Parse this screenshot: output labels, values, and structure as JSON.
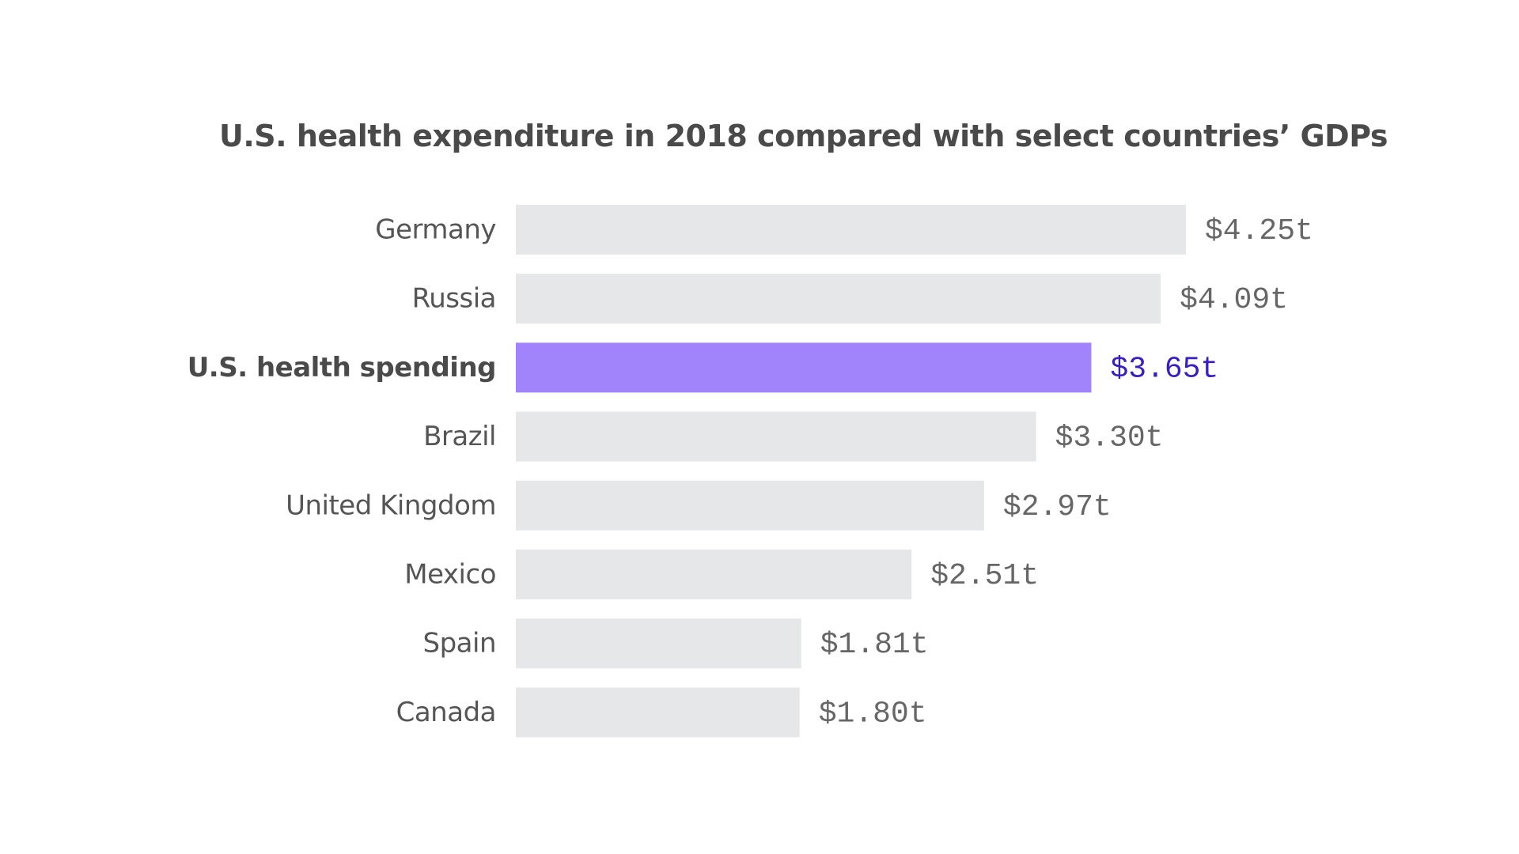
{
  "chart_data": {
    "type": "bar",
    "orientation": "horizontal",
    "title": "U.S. health expenditure in 2018 compared with select countries’ GDPs",
    "xlabel": "",
    "ylabel": "",
    "xlim": [
      0,
      4.25
    ],
    "grid": false,
    "legend": "none",
    "categories": [
      "Germany",
      "Russia",
      "U.S. health spending",
      "Brazil",
      "United Kingdom",
      "Mexico",
      "Spain",
      "Canada"
    ],
    "values": [
      4.25,
      4.09,
      3.65,
      3.3,
      2.97,
      2.51,
      1.81,
      1.8
    ],
    "value_labels": [
      "$4.25t",
      "$4.09t",
      "$3.65t",
      "$3.30t",
      "$2.97t",
      "$2.51t",
      "$1.81t",
      "$1.80t"
    ],
    "highlight_category": "U.S. health spending",
    "colors": {
      "bar_default": "#e6e7e8",
      "bar_highlight": "#a184fc",
      "label_default": "#555555",
      "label_highlight": "#4a4a4a",
      "value_default": "#666666",
      "value_highlight": "#3b1ec0",
      "title": "#4a4a4a"
    }
  }
}
